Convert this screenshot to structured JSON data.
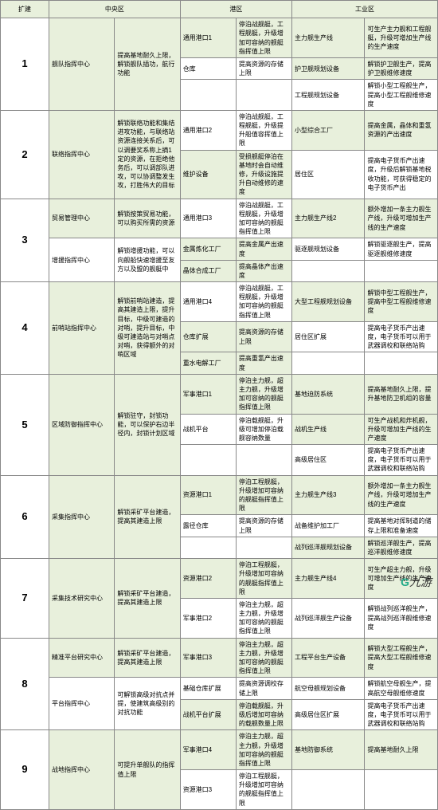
{
  "headers": {
    "h0": "扩建",
    "h1": "中央区",
    "h2": "港区",
    "h3": "工业区"
  },
  "rows": [
    {
      "n": "1",
      "a": [
        {
          "c2": "舰队指挥中心",
          "c3": "提高基地耐久上限，解锁舰队插功，航行功能",
          "c4": "通用港口1",
          "c5": "停泊战舰艇，工程舰艇，升级增加可容纳的舰艇指挥值上限",
          "c6": "主力舰生产线",
          "c7": "可生产主力舰和工程舰艇，升级可增加生产线的生产速度",
          "hl": [
            2,
            3,
            4,
            5,
            6,
            7
          ]
        },
        {
          "c4": "仓库",
          "c5": "提高资源的存储上限",
          "c6": "护卫舰规划设备",
          "c7": "解锁护卫舰生产，提高护卫舰维修速度",
          "hl": [
            6,
            7
          ]
        },
        {
          "c6": "工程舰规划设备",
          "c7": "解锁小型工程舰生产，提高小型工程舰维修速度"
        }
      ]
    },
    {
      "n": "2",
      "a": [
        {
          "c2": "联络指挥中心",
          "c3": "解锁联络功能和集结进攻功能，与联络站资源连接关系后，可以调要奖系称上摘1定的资源，在拒绝他务后，可以调部队进攻，可以协调整发生攻，打胜伟大的目标",
          "c4": "通用港口2",
          "c5": "停泊战舰艇，工程舰艇，升级提升船值容挥值上限",
          "c6": "小型综合工厂",
          "c7": "提高金属，晶体和重氢资源的产出速度",
          "hl": [
            2,
            3,
            6,
            7
          ]
        },
        {
          "c4": "维护设备",
          "c5": "受损舰艇停泊在基地时会自动维修，升级设施提升自动维修的速度",
          "c6": "居住区",
          "c7": "提高电子货币产出速度，升级后解锁基地税收功能，可获得稳定的电子货币产出",
          "hl": [
            4,
            5
          ]
        }
      ]
    },
    {
      "n": "3",
      "a": [
        {
          "c2": "贸易管理中心",
          "c3": "解锁按策贸易功能，可以购买所需的资源",
          "c4": "通用港口3",
          "c5": "停泊战舰艇，工程舰艇，升级增加可容纳的舰艇指挥值上限",
          "c6": "主力舰生产线2",
          "c7": "额外增加一条主力舰生产线，升级可增加生产线的生产速度",
          "hl": [
            2,
            3,
            6,
            7
          ]
        },
        {
          "c2": "增援指挥中心",
          "c3": "解锁增援功能，可以向舰船快速增援至友方以及盟的舰艇中",
          "c4": "金属炼化工厂",
          "c5": "提高金属产出速度",
          "c6": "驱逐舰规划设备",
          "c7": "解锁驱逐舰生产，提高驱逐舰维修速度",
          "hl": [
            4,
            5
          ]
        },
        {
          "c4": "晶体合成工厂",
          "c5": "提高晶体产出速度",
          "hl": [
            4,
            5
          ]
        }
      ]
    },
    {
      "n": "4",
      "a": [
        {
          "c2": "前哨站指挥中心",
          "c3": "解锁前哨站建造，提高其建造上限，提升目标，中级可建造的对哨，提升目标，中级可建造站与对哨点对哨，获得额外的对哨区域",
          "c4": "通用港口4",
          "c5": "停泊战舰艇，工程舰艇，升级增加可容纳的舰艇指挥值上限",
          "c6": "大型工程舰规划设备",
          "c7": "解锁中型工程舰生产，提高中型工程舰维修速度",
          "hl": [
            2,
            3,
            6,
            7
          ]
        },
        {
          "c4": "仓库扩展",
          "c5": "提高资源的存储上限",
          "c6": "居住区扩展",
          "c7": "提高电子货币产出速度，电子货币可以用于武器调校和联络站购",
          "hl": [
            4,
            5
          ]
        },
        {
          "c4": "重水电解工厂",
          "c5": "提高重氢产出速度",
          "hl": [
            4,
            5
          ]
        }
      ]
    },
    {
      "n": "5",
      "a": [
        {
          "c2": "区域防御指挥中心",
          "c3": "解锁驻守，封锁功能，可以保护右边半径内，封锁计划区域",
          "c4": "军事港口1",
          "c5": "停泊主力舰，超主力舰，升级增加可容纳的舰艇指挥值上限",
          "c6": "基地迫防系统",
          "c7": "提高基地耐久上限，提升基地防卫机组的容量",
          "hl": [
            2,
            3,
            4,
            5,
            6,
            7
          ]
        },
        {
          "c4": "战机平台",
          "c5": "停泊载舰艇，升级可增加停泊载舰容纳数量",
          "c6": "战机生产线",
          "c7": "可生产战机和炸机舰，升级可增加生产线的生产速度",
          "hl": [
            6,
            7
          ]
        },
        {
          "c6": "高级居住区",
          "c7": "提高电子货币产出速度，电子货币可以用于武器调校和联络站购"
        }
      ]
    },
    {
      "n": "6",
      "a": [
        {
          "c2": "采集指挥中心",
          "c3": "解锁采矿平台建造，提高其建造上限",
          "c4": "资源港口1",
          "c5": "停泊工程舰艇，升级增加可容纳的舰艇指挥值上限",
          "c6": "主力舰生产线3",
          "c7": "额外增加一条主力舰生产线，升级可增加生产线的生产速度",
          "hl": [
            2,
            3,
            4,
            5,
            6,
            7
          ]
        },
        {
          "c4": "露径仓库",
          "c5": "提高资源的存储上限",
          "c6": "战备维护加工厂",
          "c7": "提高基地对挥制道的储存上限和准备速度"
        },
        {
          "c6": "战列巡洋舰规划设备",
          "c7": "解锁巡洋舰生产，提高巡洋舰维修速度",
          "hl": [
            6,
            7
          ]
        }
      ]
    },
    {
      "n": "7",
      "a": [
        {
          "c2": "采集技术研究中心",
          "c3": "解锁采矿平台建造，提高其建造上限",
          "c4": "资源港口2",
          "c5": "停泊工程舰艇，升级增加可容纳的舰艇指挥值上限",
          "c6": "主力舰生产线4",
          "c7": "可生产超主力舰，升级可增加生产线的生产速度",
          "hl": [
            2,
            3,
            4,
            5,
            6,
            7
          ]
        },
        {
          "c4": "军事港口2",
          "c5": "停泊主力舰，超主力舰，升级增加可容纳的舰艇指挥值上限",
          "c6": "战列巡洋舰生产设备",
          "c7": "解锁战列巡洋舰生产，提高战列巡洋舰维修速度"
        }
      ]
    },
    {
      "n": "8",
      "a": [
        {
          "c2": "精准平台研究中心",
          "c3": "解锁采矿平台建造，提高其建造上限",
          "c4": "军事港口3",
          "c5": "停泊主力舰，超主力舰，升级增加可容纳的舰艇指挥值上限",
          "c6": "工程平台生产设备",
          "c7": "解锁大型工程舰生产，提高大型工程舰维修速度",
          "hl": [
            2,
            3,
            4,
            5,
            6,
            7
          ]
        },
        {
          "c2": "平台指挥中心",
          "c3": "可解锁高级对抗点并提，使建筑高级别的对抗功能",
          "c4": "基础仓库扩展",
          "c5": "提高资源调校存储上限",
          "c6": "航空母舰规划设备",
          "c7": "解锁航空母舰生产，提高航空母舰维修速度"
        },
        {
          "c4": "战机平台扩展",
          "c5": "停泊载舰艇，升级后增加可容纳的载舰数量上限",
          "c6": "高级居住区扩展",
          "c7": "提高电子货币产出速度，电子货币可以用于武器调校和联络站购",
          "hl": [
            4,
            5
          ]
        }
      ]
    },
    {
      "n": "9",
      "a": [
        {
          "c2": "战地指挥中心",
          "c3": "可提升单舰队的指挥值上限",
          "c4": "军事港口4",
          "c5": "停泊主力舰，超主力舰，升级增加可容纳的舰艇指挥值上限",
          "c6": "基地防御系统",
          "c7": "提高基地耐久上限",
          "hl": [
            2,
            3,
            4,
            5,
            6,
            7
          ]
        },
        {
          "c4": "资源港口3",
          "c5": "停泊工程舰艇，升级增加可容纳的舰艇指挥值上限"
        }
      ]
    }
  ],
  "logo": {
    "g": "G",
    "rest": "九游"
  }
}
